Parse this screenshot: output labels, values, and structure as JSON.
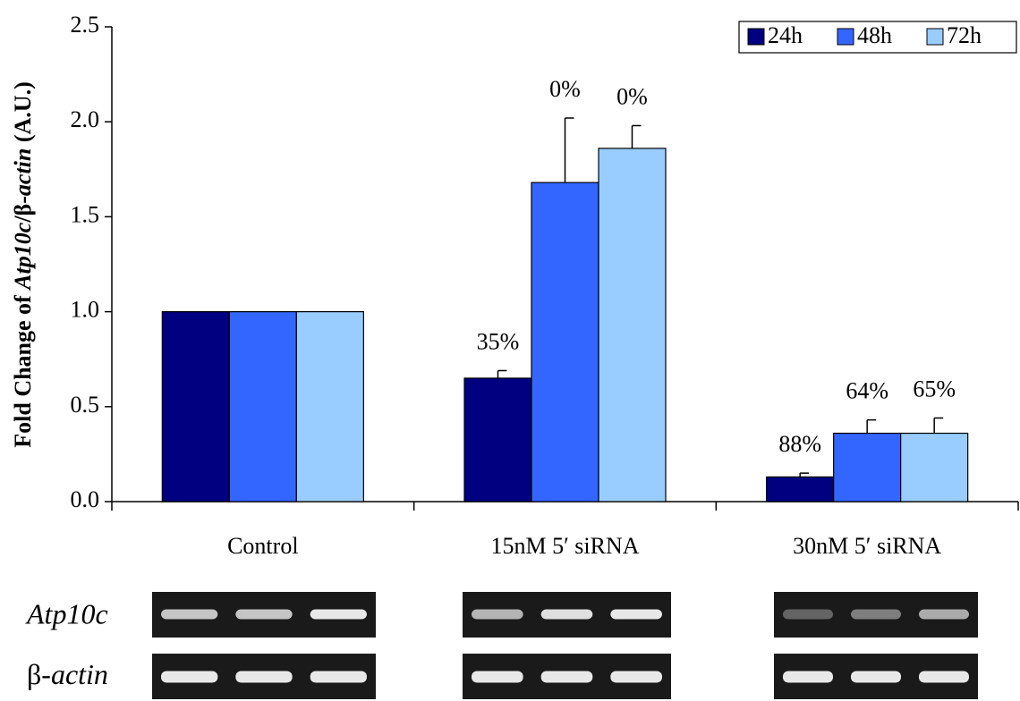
{
  "chart_data": {
    "type": "bar",
    "y_label": [
      "Fold Change of ",
      "Atp10c",
      "/β-",
      "actin",
      " (A.U.)"
    ],
    "categories": [
      "Control",
      "15nM 5′ siRNA",
      "30nM 5′ siRNA"
    ],
    "series": [
      {
        "name": "24h",
        "color": "#000080",
        "values": [
          1.0,
          0.65,
          0.13
        ],
        "errors": [
          null,
          0.04,
          0.02
        ],
        "annotations": [
          null,
          "35%",
          "88%"
        ]
      },
      {
        "name": "48h",
        "color": "#3366ff",
        "values": [
          1.0,
          1.68,
          0.36
        ],
        "errors": [
          null,
          0.34,
          0.07
        ],
        "annotations": [
          null,
          "0%",
          "64%"
        ]
      },
      {
        "name": "72h",
        "color": "#99ccff",
        "values": [
          1.0,
          1.86,
          0.36
        ],
        "errors": [
          null,
          0.12,
          0.08
        ],
        "annotations": [
          null,
          "0%",
          "65%"
        ]
      }
    ],
    "ylim": [
      0,
      2.5
    ],
    "yticks": [
      {
        "value": 0,
        "label": "0.0"
      },
      {
        "value": 0.5,
        "label": "0.5"
      },
      {
        "value": 1,
        "label": "1.0"
      },
      {
        "value": 1.5,
        "label": "1.5"
      },
      {
        "value": 2,
        "label": "2.0"
      },
      {
        "value": 2.5,
        "label": "2.5"
      }
    ],
    "legend": "top-right",
    "gel_rows": [
      [
        "Atp10c"
      ],
      [
        "β-",
        "actin"
      ]
    ]
  }
}
